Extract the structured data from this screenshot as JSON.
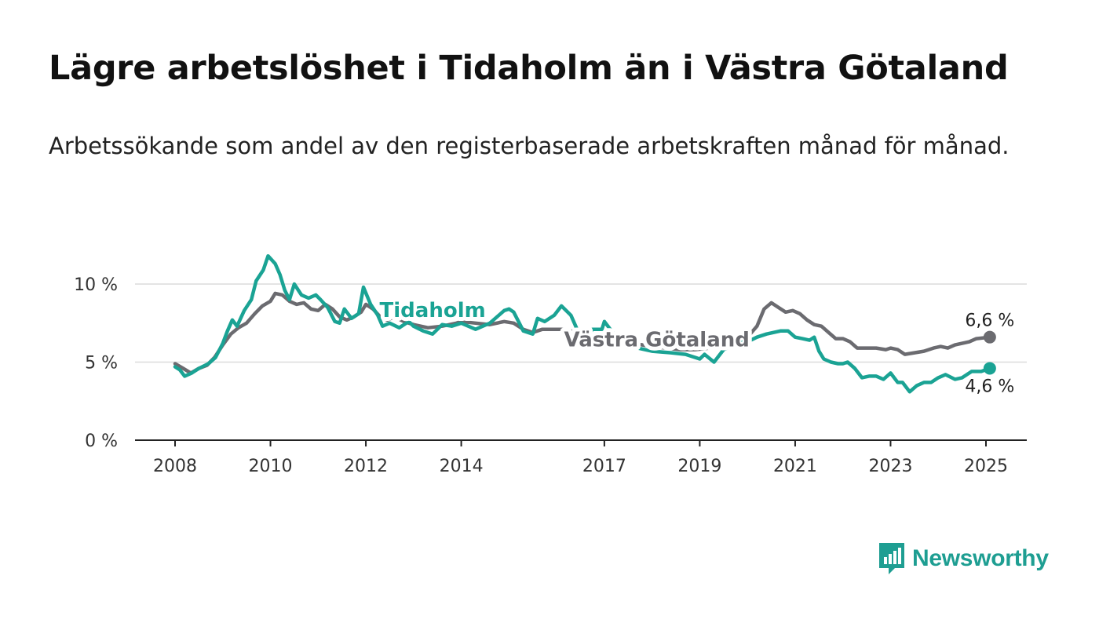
{
  "title": "Lägre arbetslöshet i Tidaholm än i Västra Götaland",
  "subtitle": "Arbetssökande som andel av den registerbaserade arbetskraften månad för månad.",
  "brand": {
    "name": "Newsworthy",
    "color": "#1e9e92"
  },
  "chart_data": {
    "type": "line",
    "title": "Lägre arbetslöshet i Tidaholm än i Västra Götaland",
    "subtitle": "Arbetssökande som andel av den registerbaserade arbetskraften månad för månad.",
    "y_unit": "%",
    "ylim": [
      0,
      11.5
    ],
    "xlim": [
      2008,
      2025
    ],
    "y_ticks": [
      {
        "value": 0,
        "label": "0 %"
      },
      {
        "value": 5,
        "label": "5 %"
      },
      {
        "value": 10,
        "label": "10 %"
      }
    ],
    "x_ticks": [
      {
        "value": 2008,
        "label": "2008"
      },
      {
        "value": 2010,
        "label": "2010"
      },
      {
        "value": 2012,
        "label": "2012"
      },
      {
        "value": 2014,
        "label": "2014"
      },
      {
        "value": 2017,
        "label": "2017"
      },
      {
        "value": 2019,
        "label": "2019"
      },
      {
        "value": 2021,
        "label": "2021"
      },
      {
        "value": 2023,
        "label": "2023"
      },
      {
        "value": 2025,
        "label": "2025"
      }
    ],
    "grid": "horizontal",
    "series": [
      {
        "name": "Västra Götaland",
        "color": "#6b6b70",
        "label_at": [
          2018.1,
          6.0
        ],
        "end_label": "6,6 %",
        "points": [
          [
            2008.0,
            4.9
          ],
          [
            2008.17,
            4.6
          ],
          [
            2008.33,
            4.3
          ],
          [
            2008.5,
            4.6
          ],
          [
            2008.67,
            4.8
          ],
          [
            2008.83,
            5.3
          ],
          [
            2009.0,
            6.1
          ],
          [
            2009.17,
            6.8
          ],
          [
            2009.33,
            7.2
          ],
          [
            2009.5,
            7.5
          ],
          [
            2009.67,
            8.1
          ],
          [
            2009.83,
            8.6
          ],
          [
            2010.0,
            8.9
          ],
          [
            2010.1,
            9.4
          ],
          [
            2010.25,
            9.3
          ],
          [
            2010.4,
            8.9
          ],
          [
            2010.55,
            8.7
          ],
          [
            2010.7,
            8.8
          ],
          [
            2010.85,
            8.4
          ],
          [
            2011.0,
            8.3
          ],
          [
            2011.15,
            8.7
          ],
          [
            2011.3,
            8.4
          ],
          [
            2011.45,
            7.9
          ],
          [
            2011.6,
            7.7
          ],
          [
            2011.75,
            7.9
          ],
          [
            2011.9,
            8.2
          ],
          [
            2012.0,
            8.7
          ],
          [
            2012.15,
            8.4
          ],
          [
            2012.3,
            7.9
          ],
          [
            2012.45,
            7.7
          ],
          [
            2012.6,
            7.9
          ],
          [
            2012.8,
            7.6
          ],
          [
            2013.0,
            7.4
          ],
          [
            2013.3,
            7.2
          ],
          [
            2013.6,
            7.3
          ],
          [
            2013.9,
            7.5
          ],
          [
            2014.0,
            7.6
          ],
          [
            2014.3,
            7.5
          ],
          [
            2014.6,
            7.4
          ],
          [
            2014.9,
            7.6
          ],
          [
            2015.1,
            7.5
          ],
          [
            2015.3,
            7.1
          ],
          [
            2015.5,
            6.9
          ],
          [
            2015.7,
            7.1
          ],
          [
            2015.9,
            7.1
          ],
          [
            2016.1,
            7.1
          ],
          [
            2016.3,
            7.0
          ],
          [
            2016.5,
            6.6
          ],
          [
            2016.7,
            6.7
          ],
          [
            2016.9,
            6.8
          ],
          [
            2017.0,
            6.8
          ],
          [
            2017.2,
            6.6
          ],
          [
            2017.4,
            6.3
          ],
          [
            2017.6,
            6.2
          ],
          [
            2017.8,
            6.1
          ],
          [
            2018.0,
            6.0
          ],
          [
            2018.3,
            5.9
          ],
          [
            2018.6,
            5.8
          ],
          [
            2018.9,
            5.8
          ],
          [
            2019.2,
            5.9
          ],
          [
            2019.5,
            6.2
          ],
          [
            2019.8,
            6.5
          ],
          [
            2020.0,
            6.6
          ],
          [
            2020.2,
            7.3
          ],
          [
            2020.35,
            8.4
          ],
          [
            2020.5,
            8.8
          ],
          [
            2020.65,
            8.5
          ],
          [
            2020.8,
            8.2
          ],
          [
            2020.95,
            8.3
          ],
          [
            2021.1,
            8.1
          ],
          [
            2021.25,
            7.7
          ],
          [
            2021.4,
            7.4
          ],
          [
            2021.55,
            7.3
          ],
          [
            2021.7,
            6.9
          ],
          [
            2021.85,
            6.5
          ],
          [
            2022.0,
            6.5
          ],
          [
            2022.15,
            6.3
          ],
          [
            2022.3,
            5.9
          ],
          [
            2022.5,
            5.9
          ],
          [
            2022.7,
            5.9
          ],
          [
            2022.9,
            5.8
          ],
          [
            2023.0,
            5.9
          ],
          [
            2023.15,
            5.8
          ],
          [
            2023.3,
            5.5
          ],
          [
            2023.5,
            5.6
          ],
          [
            2023.7,
            5.7
          ],
          [
            2023.9,
            5.9
          ],
          [
            2024.05,
            6.0
          ],
          [
            2024.2,
            5.9
          ],
          [
            2024.35,
            6.1
          ],
          [
            2024.5,
            6.2
          ],
          [
            2024.65,
            6.3
          ],
          [
            2024.8,
            6.5
          ],
          [
            2025.08,
            6.6
          ]
        ]
      },
      {
        "name": "Tidaholm",
        "color": "#1aa394",
        "label_at": [
          2013.4,
          7.9
        ],
        "end_label": "4,6 %",
        "points": [
          [
            2008.0,
            4.7
          ],
          [
            2008.1,
            4.5
          ],
          [
            2008.2,
            4.1
          ],
          [
            2008.35,
            4.3
          ],
          [
            2008.5,
            4.6
          ],
          [
            2008.7,
            4.9
          ],
          [
            2008.85,
            5.3
          ],
          [
            2009.0,
            6.2
          ],
          [
            2009.1,
            7.0
          ],
          [
            2009.2,
            7.7
          ],
          [
            2009.3,
            7.3
          ],
          [
            2009.45,
            8.3
          ],
          [
            2009.6,
            9.0
          ],
          [
            2009.7,
            10.2
          ],
          [
            2009.85,
            10.9
          ],
          [
            2009.95,
            11.8
          ],
          [
            2010.1,
            11.3
          ],
          [
            2010.2,
            10.6
          ],
          [
            2010.3,
            9.6
          ],
          [
            2010.4,
            9.0
          ],
          [
            2010.5,
            10.0
          ],
          [
            2010.65,
            9.3
          ],
          [
            2010.8,
            9.1
          ],
          [
            2010.95,
            9.3
          ],
          [
            2011.05,
            9.0
          ],
          [
            2011.2,
            8.5
          ],
          [
            2011.35,
            7.6
          ],
          [
            2011.45,
            7.5
          ],
          [
            2011.55,
            8.4
          ],
          [
            2011.7,
            7.8
          ],
          [
            2011.85,
            8.1
          ],
          [
            2011.95,
            9.8
          ],
          [
            2012.1,
            8.7
          ],
          [
            2012.25,
            8.0
          ],
          [
            2012.35,
            7.3
          ],
          [
            2012.5,
            7.5
          ],
          [
            2012.7,
            7.2
          ],
          [
            2012.9,
            7.6
          ],
          [
            2013.0,
            7.3
          ],
          [
            2013.2,
            7.0
          ],
          [
            2013.4,
            6.8
          ],
          [
            2013.6,
            7.4
          ],
          [
            2013.8,
            7.3
          ],
          [
            2014.0,
            7.5
          ],
          [
            2014.3,
            7.1
          ],
          [
            2014.6,
            7.5
          ],
          [
            2014.9,
            8.3
          ],
          [
            2015.0,
            8.4
          ],
          [
            2015.1,
            8.2
          ],
          [
            2015.3,
            7.0
          ],
          [
            2015.5,
            6.8
          ],
          [
            2015.6,
            7.8
          ],
          [
            2015.75,
            7.6
          ],
          [
            2015.95,
            8.0
          ],
          [
            2016.1,
            8.6
          ],
          [
            2016.3,
            8.0
          ],
          [
            2016.5,
            6.6
          ],
          [
            2016.65,
            6.6
          ],
          [
            2016.75,
            7.1
          ],
          [
            2016.95,
            7.1
          ],
          [
            2017.0,
            7.6
          ],
          [
            2017.2,
            6.8
          ],
          [
            2017.35,
            6.4
          ],
          [
            2017.5,
            6.2
          ],
          [
            2017.7,
            5.9
          ],
          [
            2018.0,
            5.7
          ],
          [
            2018.4,
            5.6
          ],
          [
            2018.7,
            5.5
          ],
          [
            2019.0,
            5.2
          ],
          [
            2019.1,
            5.5
          ],
          [
            2019.3,
            5.0
          ],
          [
            2019.5,
            5.8
          ],
          [
            2019.8,
            6.2
          ],
          [
            2020.0,
            6.3
          ],
          [
            2020.2,
            6.6
          ],
          [
            2020.4,
            6.8
          ],
          [
            2020.55,
            6.9
          ],
          [
            2020.7,
            7.0
          ],
          [
            2020.85,
            7.0
          ],
          [
            2021.0,
            6.6
          ],
          [
            2021.15,
            6.5
          ],
          [
            2021.3,
            6.4
          ],
          [
            2021.4,
            6.6
          ],
          [
            2021.5,
            5.7
          ],
          [
            2021.6,
            5.2
          ],
          [
            2021.75,
            5.0
          ],
          [
            2021.9,
            4.9
          ],
          [
            2022.0,
            4.9
          ],
          [
            2022.1,
            5.0
          ],
          [
            2022.25,
            4.6
          ],
          [
            2022.4,
            4.0
          ],
          [
            2022.55,
            4.1
          ],
          [
            2022.7,
            4.1
          ],
          [
            2022.85,
            3.9
          ],
          [
            2023.0,
            4.3
          ],
          [
            2023.15,
            3.7
          ],
          [
            2023.25,
            3.7
          ],
          [
            2023.4,
            3.1
          ],
          [
            2023.55,
            3.5
          ],
          [
            2023.7,
            3.7
          ],
          [
            2023.85,
            3.7
          ],
          [
            2024.0,
            4.0
          ],
          [
            2024.15,
            4.2
          ],
          [
            2024.35,
            3.9
          ],
          [
            2024.5,
            4.0
          ],
          [
            2024.7,
            4.4
          ],
          [
            2024.9,
            4.4
          ],
          [
            2025.08,
            4.6
          ]
        ]
      }
    ]
  }
}
